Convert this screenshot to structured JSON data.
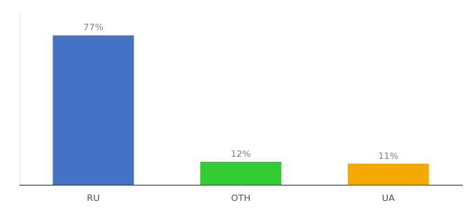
{
  "chart_data": {
    "type": "bar",
    "categories": [
      "RU",
      "OTH",
      "UA"
    ],
    "values": [
      77,
      12,
      11
    ],
    "value_labels": [
      "77%",
      "12%",
      "11%"
    ],
    "colors": [
      "#4472c4",
      "#33cc33",
      "#f5a800"
    ],
    "ylim": [
      0,
      88
    ],
    "data_labels": true,
    "tick_labels": "x",
    "grid": false
  }
}
